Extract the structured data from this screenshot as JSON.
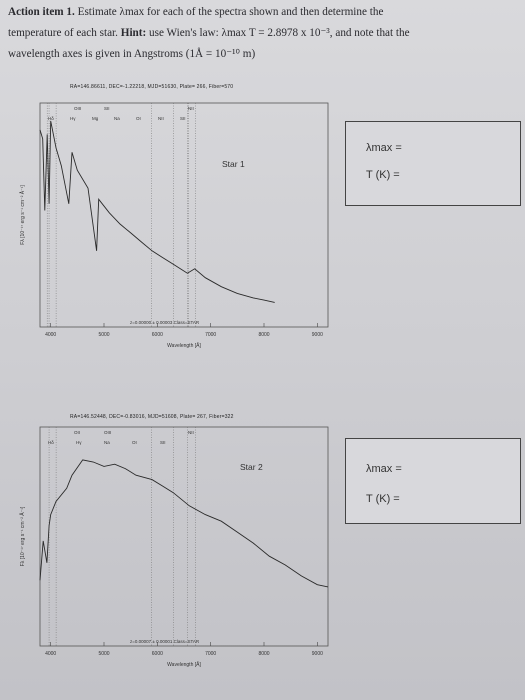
{
  "header": {
    "line1_bold": "Action item 1.",
    "line1_rest": " Estimate λmax for each of the spectra shown and then determine the",
    "line2_a": "temperature of each star. ",
    "line2_bold": "Hint:",
    "line2_rest": " use Wien's law: λmax T = 2.8978 x 10⁻³, and note that the",
    "line3": "wavelength axes is given in Angstroms (1Å = 10⁻¹⁰ m)"
  },
  "charts": [
    {
      "meta": "RA=146.86611, DEC=-1.22218, MJD=51630, Plate= 266, Fiber=570",
      "star_label": "Star 1",
      "lines_top": [
        "OIII",
        "SII",
        "NII"
      ],
      "lines_bottom": [
        "Hδ",
        "Hγ",
        "Mg",
        "Na",
        "OI",
        "NII",
        "SII"
      ],
      "xlabel": "Wavelength [Å]",
      "ylabel": "Fλ [10⁻¹⁷ erg s⁻¹ cm⁻² Å⁻¹]",
      "bottom_text": "z=0.00000 ± 0.00003 Class=STAR",
      "box_lambda": "λmax =",
      "box_temp": "T (K) ="
    },
    {
      "meta": "RA=146.52448, DEC=-0.83016, MJD=51608, Plate= 267, Fiber=322",
      "star_label": "Star 2",
      "lines_top": [
        "OII",
        "OIII",
        "NII"
      ],
      "lines_bottom": [
        "Hδ",
        "Hγ",
        "Na",
        "OI",
        "SII"
      ],
      "xlabel": "Wavelength [Å]",
      "ylabel": "Fλ [10⁻¹⁷ erg s⁻¹ cm⁻² Å⁻¹]",
      "bottom_text": "z=0.00007 ± 0.00001 Class=STAR",
      "box_lambda": "λmax =",
      "box_temp": "T (K) ="
    }
  ],
  "chart_data": [
    {
      "type": "line",
      "title": "Star 1",
      "xlabel": "Wavelength [Å]",
      "x": [
        3800,
        3850,
        3890,
        3935,
        3970,
        4000,
        4100,
        4200,
        4340,
        4400,
        4500,
        4700,
        4861,
        4900,
        5100,
        5300,
        5500,
        5700,
        5900,
        6100,
        6300,
        6563,
        6700,
        6900,
        7200,
        7500,
        7800,
        8000,
        8200
      ],
      "y": [
        88,
        84,
        52,
        86,
        55,
        92,
        80,
        72,
        55,
        78,
        70,
        62,
        34,
        57,
        51,
        46,
        42,
        38,
        34,
        31,
        28,
        24,
        26,
        22,
        18,
        15,
        13,
        12,
        11
      ],
      "xlim": [
        3800,
        9200
      ],
      "ylim": [
        0,
        100
      ],
      "xticks": [
        4000,
        5000,
        6000,
        7000,
        8000,
        9000
      ]
    },
    {
      "type": "line",
      "title": "Star 2",
      "xlabel": "Wavelength [Å]",
      "x": [
        3800,
        3860,
        3930,
        3970,
        4000,
        4100,
        4300,
        4400,
        4600,
        4800,
        5000,
        5200,
        5400,
        5600,
        5900,
        6100,
        6300,
        6600,
        6900,
        7200,
        7500,
        7800,
        8100,
        8400,
        8700,
        9000,
        9200
      ],
      "y": [
        30,
        48,
        38,
        55,
        60,
        66,
        72,
        78,
        85,
        84,
        82,
        83,
        81,
        78,
        76,
        73,
        70,
        64,
        60,
        57,
        52,
        47,
        41,
        37,
        32,
        28,
        27
      ],
      "xlim": [
        3800,
        9200
      ],
      "ylim": [
        0,
        100
      ],
      "xticks": [
        4000,
        5000,
        6000,
        7000,
        8000,
        9000
      ]
    }
  ]
}
